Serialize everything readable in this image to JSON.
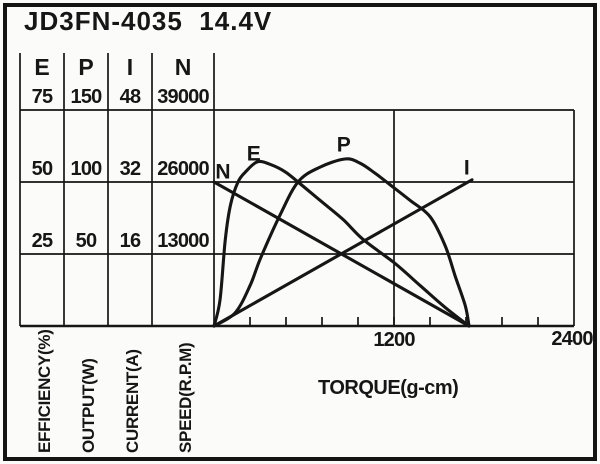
{
  "title": "JD3FN-4035  14.4V",
  "table": {
    "headers": [
      "E",
      "P",
      "I",
      "N"
    ],
    "rows": [
      [
        "75",
        "150",
        "48",
        "39000"
      ],
      [
        "50",
        "100",
        "32",
        "26000"
      ],
      [
        "25",
        "50",
        "16",
        "13000"
      ]
    ],
    "footer_labels": [
      "EFFICIENCY(%)",
      "OUTPUT(W)",
      "CURRENT(A)",
      "SPEED(R.P.M)"
    ]
  },
  "colors": {
    "ink": "#161616",
    "background": "#fbfbfa"
  },
  "chart_data": {
    "type": "line",
    "title": "JD3FN-4035  14.4V",
    "xlabel": "TORQUE(g-cm)",
    "grid": true,
    "x_axis": {
      "label": "TORQUE(g-cm)",
      "min": 0,
      "max": 2400,
      "labeled_ticks": [
        1200,
        2400
      ],
      "minor_tick_step": 240
    },
    "axes": [
      {
        "symbol": "E",
        "name": "EFFICIENCY(%)",
        "max": 75,
        "tick_values": [
          25,
          50,
          75
        ]
      },
      {
        "symbol": "P",
        "name": "OUTPUT(W)",
        "max": 150,
        "tick_values": [
          50,
          100,
          150
        ]
      },
      {
        "symbol": "I",
        "name": "CURRENT(A)",
        "max": 48,
        "tick_values": [
          16,
          32,
          48
        ]
      },
      {
        "symbol": "N",
        "name": "SPEED(R.P.M)",
        "max": 39000,
        "tick_values": [
          13000,
          26000,
          39000
        ]
      }
    ],
    "series": [
      {
        "name": "N",
        "axis": "N",
        "shape": "straight",
        "points": [
          [
            0,
            26000
          ],
          [
            1700,
            0
          ]
        ],
        "label_at": [
          60,
          27700
        ]
      },
      {
        "name": "E",
        "axis": "E",
        "shape": "smooth",
        "points": [
          [
            0,
            0
          ],
          [
            40,
            9
          ],
          [
            75,
            30
          ],
          [
            110,
            42
          ],
          [
            160,
            50
          ],
          [
            210,
            53.5
          ],
          [
            290,
            57
          ],
          [
            380,
            56
          ],
          [
            475,
            53.5
          ],
          [
            560,
            50
          ],
          [
            710,
            43.5
          ],
          [
            860,
            37
          ],
          [
            995,
            30
          ],
          [
            1200,
            22
          ],
          [
            1375,
            14
          ],
          [
            1540,
            6.5
          ],
          [
            1700,
            0
          ]
        ],
        "label_at": [
          265,
          59.5
        ]
      },
      {
        "name": "P",
        "axis": "P",
        "shape": "smooth",
        "points": [
          [
            0,
            0
          ],
          [
            140,
            9
          ],
          [
            240,
            28
          ],
          [
            310,
            47
          ],
          [
            440,
            77
          ],
          [
            560,
            100
          ],
          [
            700,
            110
          ],
          [
            873,
            116
          ],
          [
            975,
            113
          ],
          [
            1075,
            106
          ],
          [
            1200,
            96
          ],
          [
            1310,
            87
          ],
          [
            1440,
            76
          ],
          [
            1540,
            56
          ],
          [
            1607,
            35
          ],
          [
            1675,
            14
          ],
          [
            1700,
            0
          ]
        ],
        "label_at": [
          865,
          125
        ]
      },
      {
        "name": "I",
        "axis": "I",
        "shape": "straight",
        "points": [
          [
            0,
            0
          ],
          [
            1720,
            32.5
          ]
        ],
        "label_at": [
          1685,
          35
        ]
      }
    ]
  }
}
